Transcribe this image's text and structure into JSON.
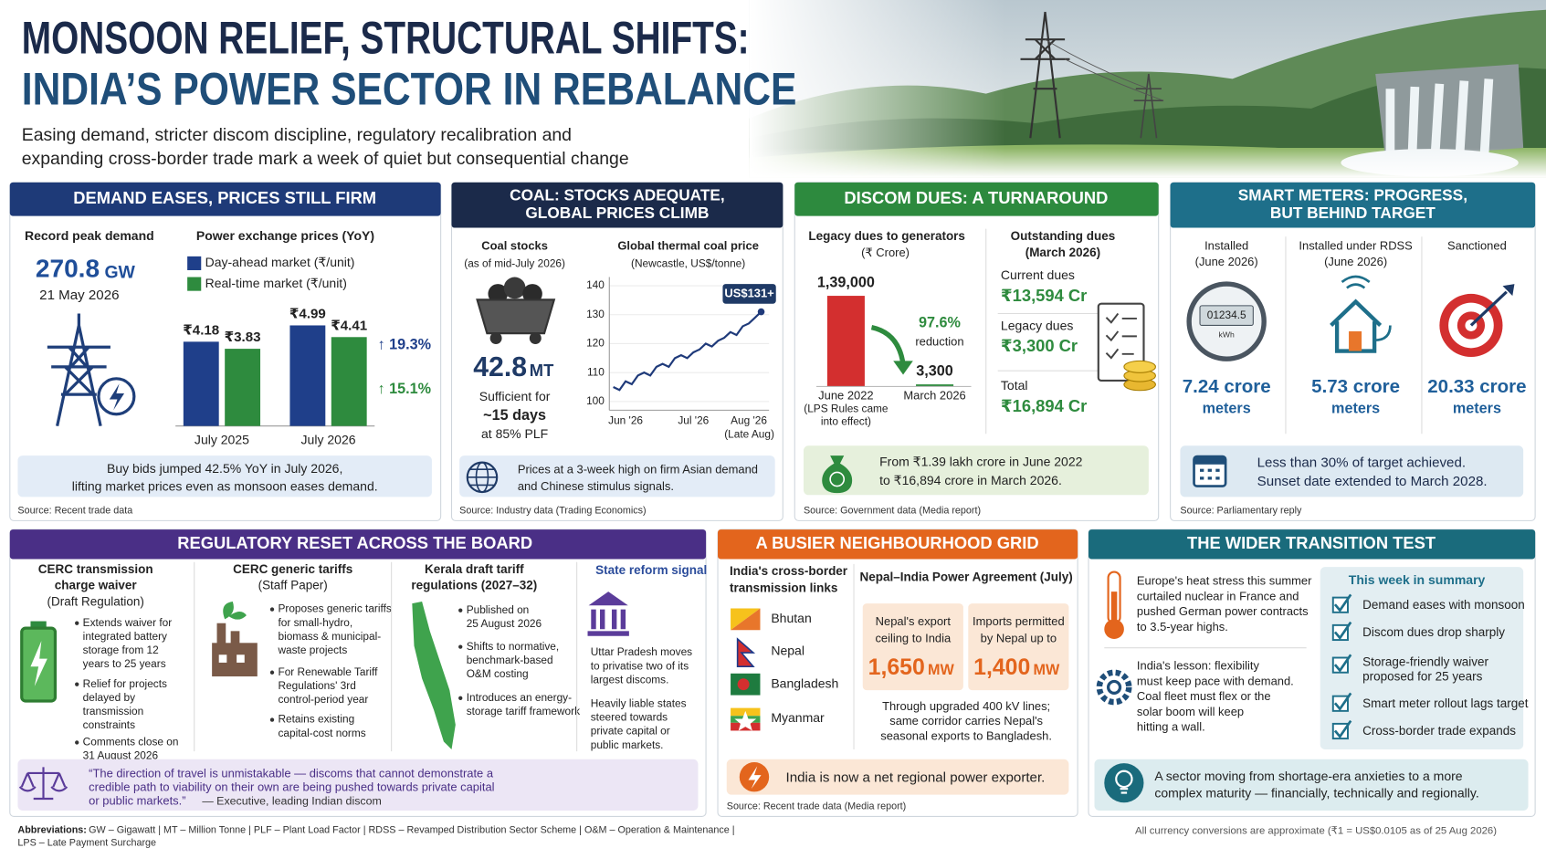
{
  "header": {
    "title_line1": "MONSOON RELIEF, STRUCTURAL SHIFTS:",
    "title_line2": "INDIA’S POWER SECTOR IN REBALANCE",
    "subtitle_line1": "Easing demand, stricter discom discipline, regulatory recalibration and",
    "subtitle_line2": "expanding cross-border trade mark a week of quiet but consequential change"
  },
  "demand": {
    "title": "DEMAND EASES, PRICES STILL FIRM",
    "peak_label": "Record peak demand",
    "peak_value": "270.8",
    "peak_unit": "GW",
    "peak_date": "21 May 2026",
    "note": [
      "Buy bids jumped 42.5% YoY in July 2026,",
      "lifting market prices even as monsoon eases demand."
    ],
    "source": "Source:  Recent trade data"
  },
  "coal": {
    "title": [
      "COAL: STOCKS ADEQUATE,",
      "GLOBAL PRICES CLIMB"
    ],
    "stocks_label": "Coal stocks",
    "stocks_date": "(as of mid-July 2026)",
    "stocks_value": "42.8",
    "stocks_unit": "MT",
    "sufficient": [
      "Sufficient for",
      "~15 days",
      "at 85% PLF"
    ],
    "note": [
      "Prices at a 3-week high on firm Asian demand",
      "and Chinese stimulus signals."
    ],
    "source": "Source:  Industry data (Trading Economics)"
  },
  "discom": {
    "title": "DISCOM DUES: A TURNAROUND",
    "outstanding_title": "Outstanding dues",
    "outstanding_date": "(March 2026)",
    "items": [
      {
        "label": "Current dues",
        "value": "₹13,594 Cr"
      },
      {
        "label": "Legacy dues",
        "value": "₹3,300 Cr"
      },
      {
        "label": "Total",
        "value": "₹16,894 Cr"
      }
    ],
    "note": [
      "From ₹1.39 lakh crore in June 2022",
      "to ₹16,894 crore in March 2026."
    ],
    "source": "Source:  Government data (Media report)"
  },
  "meters": {
    "title": [
      "SMART METERS: PROGRESS,",
      "BUT BEHIND TARGET"
    ],
    "meter_display": "01234.5",
    "meter_unit": "kWh",
    "columns": [
      {
        "label": [
          "Installed",
          "(June 2026)"
        ],
        "value": "7.24 crore",
        "unit": "meters"
      },
      {
        "label": [
          "Installed under RDSS",
          "(June 2026)"
        ],
        "value": "5.73 crore",
        "unit": "meters"
      },
      {
        "label": [
          "Sanctioned"
        ],
        "value": "20.33 crore",
        "unit": "meters"
      }
    ],
    "note": [
      "Less than 30% of target achieved.",
      "Sunset date extended to March 2028."
    ],
    "source": "Source:  Parliamentary reply"
  },
  "regulatory": {
    "title": "REGULATORY RESET ACROSS THE BOARD",
    "columns": [
      {
        "heading": [
          "CERC transmission",
          "charge waiver",
          "(Draft Regulation)"
        ],
        "bullets": [
          [
            "Extends waiver for",
            "integrated battery",
            "storage from 12",
            "years to 25 years"
          ],
          [
            "Relief for projects",
            "delayed by",
            "transmission",
            "constraints"
          ],
          [
            "Comments close on",
            "31 August 2026"
          ]
        ]
      },
      {
        "heading": [
          "CERC generic tariffs",
          "(Staff Paper)"
        ],
        "bullets": [
          [
            "Proposes generic tariffs",
            "for small-hydro,",
            "biomass & municipal-",
            "waste projects"
          ],
          [
            "For Renewable Tariff",
            "Regulations' 3rd",
            "control-period year"
          ],
          [
            "Retains existing",
            "capital-cost norms"
          ]
        ]
      },
      {
        "heading": [
          "Kerala draft tariff",
          "regulations (2027–32)"
        ],
        "bullets": [
          [
            "Published on",
            "25 August 2026"
          ],
          [
            "Shifts to normative,",
            "benchmark-based",
            "O&M costing"
          ],
          [
            "Introduces an energy-",
            "storage tariff framework"
          ]
        ]
      }
    ],
    "signal_title": "State reform signal",
    "signal": [
      [
        "Uttar Pradesh moves",
        "to privatise two of its",
        "largest discoms."
      ],
      [
        "Heavily liable states",
        "steered towards",
        "private capital or",
        "public markets."
      ]
    ],
    "quote": [
      "“The direction of travel is unmistakable — discoms that cannot demonstrate a",
      "credible path to viability on their own are being pushed towards private capital",
      "or public markets.”"
    ],
    "attribution": "— Executive, leading Indian discom"
  },
  "neighbourhood": {
    "title": "A BUSIER NEIGHBOURHOOD GRID",
    "links_title": [
      "India's cross-border",
      "transmission links"
    ],
    "countries": [
      "Bhutan",
      "Nepal",
      "Bangladesh",
      "Myanmar"
    ],
    "agreement_title": "Nepal–India Power Agreement (July)",
    "boxes": [
      {
        "label": [
          "Nepal's export",
          "ceiling to India"
        ],
        "value": "1,650",
        "unit": "MW"
      },
      {
        "label": [
          "Imports permitted",
          "by Nepal up to"
        ],
        "value": "1,400",
        "unit": "MW"
      }
    ],
    "text": [
      "Through upgraded 400 kV lines;",
      "same corridor carries Nepal's",
      "seasonal exports to Bangladesh."
    ],
    "note": "India is now a net regional power exporter.",
    "source": "Source:  Recent trade data (Media report)"
  },
  "transition": {
    "title": "THE WIDER TRANSITION TEST",
    "para1": [
      "Europe's heat stress this summer",
      "curtailed nuclear in France and",
      "pushed German power contracts",
      "to 3.5-year highs."
    ],
    "para2": [
      "India's lesson: flexibility",
      "must keep pace with demand.",
      "Coal fleet must flex or the",
      "solar boom will keep",
      "hitting a wall."
    ],
    "summary_title": "This week in summary",
    "summary": [
      [
        "Demand eases with monsoon"
      ],
      [
        "Discom dues drop sharply"
      ],
      [
        "Storage-friendly waiver",
        "proposed for 25 years"
      ],
      [
        "Smart meter rollout lags target"
      ],
      [
        "Cross-border trade expands"
      ]
    ],
    "note": [
      "A sector moving from shortage-era anxieties to a more",
      "complex maturity — financially, technically and regionally."
    ]
  },
  "footer": {
    "abbr_label": "Abbreviations:",
    "abbr": [
      "GW – Gigawatt | MT – Million Tonne | PLF – Plant Load Factor | RDSS – Revamped Distribution Sector Scheme | O&M – Operation & Maintenance |",
      "LPS – Late Payment Surcharge"
    ],
    "conversion": "All currency conversions are approximate (₹1 = US$0.0105 as of 25 Aug 2026)"
  },
  "chart_data": [
    {
      "type": "bar",
      "title": "Power exchange prices (YoY)",
      "categories": [
        "July 2025",
        "July 2026"
      ],
      "series": [
        {
          "name": "Day-ahead market (₹/unit)",
          "color": "#1f3f8a",
          "values": [
            4.18,
            4.99
          ],
          "value_labels": [
            "₹4.18",
            "₹4.99"
          ]
        },
        {
          "name": "Real-time market (₹/unit)",
          "color": "#2e8b3e",
          "values": [
            3.83,
            4.41
          ],
          "value_labels": [
            "₹3.83",
            "₹4.41"
          ]
        }
      ],
      "annotations": [
        "↑ 19.3%",
        "↑ 15.1%"
      ]
    },
    {
      "type": "line",
      "title": "Global thermal coal price",
      "subtitle": "(Newcastle, US$/tonne)",
      "color": "#1f3a7a",
      "categories": [
        null,
        null,
        "Jun '26",
        null,
        null,
        null,
        null,
        null,
        null,
        null,
        null,
        null,
        null,
        "Jul '26",
        null,
        null,
        null,
        null,
        null,
        null,
        null,
        null,
        "Aug '26",
        null,
        null
      ],
      "values": [
        105,
        104,
        107,
        106,
        109,
        110,
        109,
        112,
        113,
        112,
        115,
        116,
        115,
        117,
        118,
        120,
        119,
        121,
        122,
        124,
        123,
        126,
        127,
        129,
        131
      ],
      "ylim": [
        97,
        143
      ],
      "yticks": [
        100,
        110,
        120,
        130,
        140
      ],
      "grid": true,
      "annotations": [
        "US$131+",
        "(Late Aug)"
      ]
    },
    {
      "type": "bar",
      "title": "Legacy dues to generators",
      "subtitle": "(₹ Crore)",
      "categories": [
        "June 2022",
        "March 2026"
      ],
      "values": [
        139000,
        3300
      ],
      "value_labels": [
        "1,39,000",
        "3,300"
      ],
      "colors": [
        "#d32f2f",
        "#2e8b3e"
      ],
      "annotations": [
        "97.6%",
        "reduction"
      ],
      "notes": [
        "(LPS Rules came",
        "into effect)"
      ]
    }
  ]
}
